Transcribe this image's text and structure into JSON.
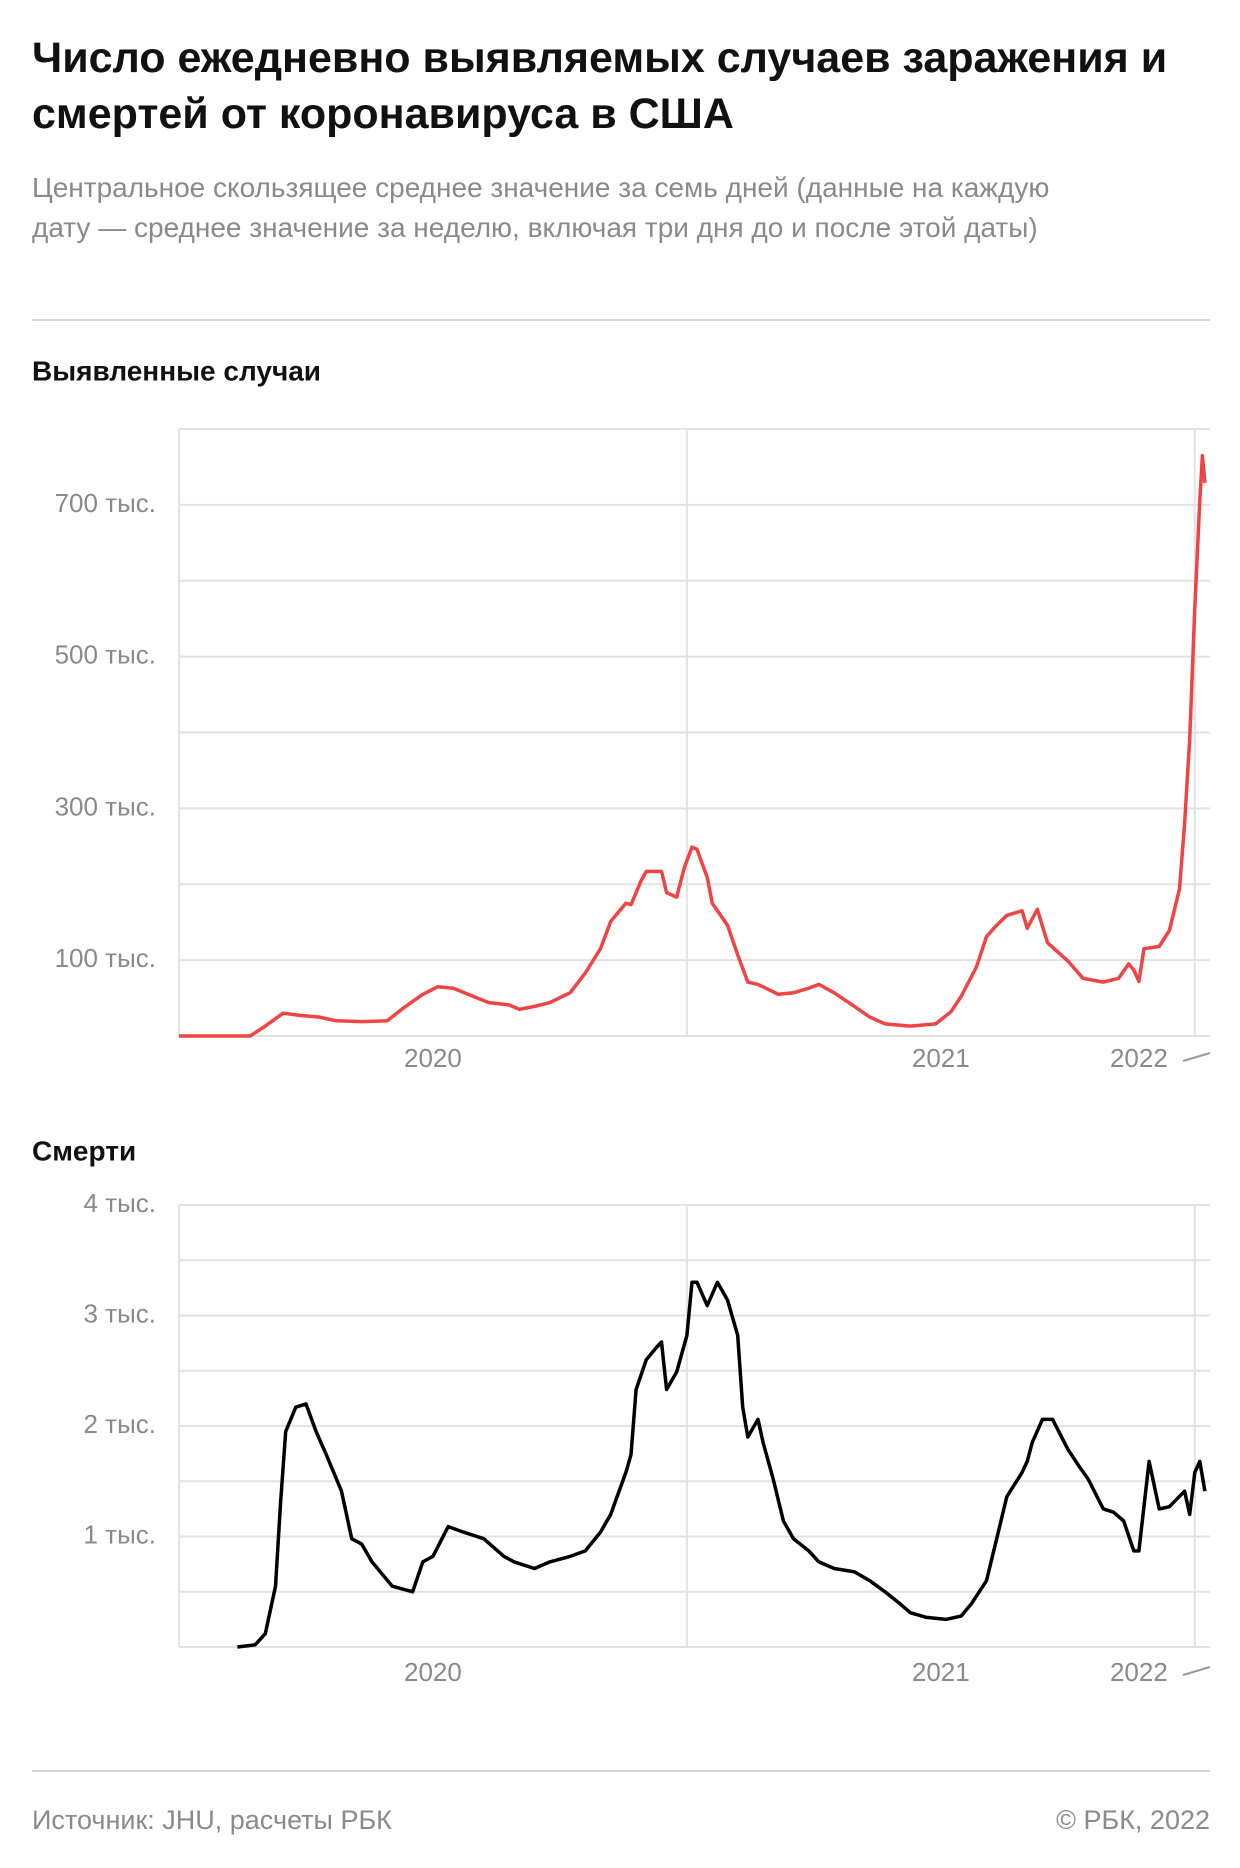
{
  "header": {
    "title": "Число ежедневно выявляемых случаев заражения и смертей от коронавируса в США",
    "subtitle": "Центральное скользящее среднее значение за семь дней (данные на каждую дату — среднее значение за неделю, включая три дня до и после этой даты)"
  },
  "chart_data": [
    {
      "type": "line",
      "title": "Выявленные случаи",
      "color": "#f04444",
      "x": [
        2020.0,
        2020.14,
        2020.17,
        2020.205,
        2020.24,
        2020.275,
        2020.31,
        2020.36,
        2020.41,
        2020.44,
        2020.48,
        2020.51,
        2020.54,
        2020.58,
        2020.61,
        2020.65,
        2020.67,
        2020.7,
        2020.73,
        2020.77,
        2020.8,
        2020.83,
        2020.85,
        2020.88,
        2020.89,
        2020.91,
        2020.92,
        2020.95,
        2020.96,
        2020.98,
        2020.995,
        2021.01,
        2021.02,
        2021.04,
        2021.05,
        2021.08,
        2021.1,
        2021.12,
        2021.14,
        2021.18,
        2021.21,
        2021.24,
        2021.26,
        2021.29,
        2021.33,
        2021.36,
        2021.39,
        2021.44,
        2021.49,
        2021.52,
        2021.54,
        2021.57,
        2021.59,
        2021.61,
        2021.63,
        2021.66,
        2021.67,
        2021.69,
        2021.71,
        2021.75,
        2021.78,
        2021.82,
        2021.85,
        2021.87,
        2021.88,
        2021.89,
        2021.9,
        2021.93,
        2021.95,
        2021.97,
        2021.98,
        2021.99,
        2022.0,
        2022.01,
        2022.015,
        2022.02
      ],
      "values": [
        0,
        0,
        13000,
        30000,
        27000,
        25000,
        20000,
        19000,
        20000,
        36000,
        55000,
        65000,
        63000,
        52000,
        44000,
        41000,
        35000,
        39000,
        44000,
        57000,
        83000,
        115000,
        151000,
        175000,
        173000,
        205000,
        217000,
        217000,
        189000,
        183000,
        222000,
        249000,
        246000,
        209000,
        175000,
        146000,
        107000,
        71000,
        68000,
        55000,
        57000,
        63000,
        68000,
        57000,
        39000,
        25000,
        16000,
        13000,
        16000,
        32000,
        52000,
        91000,
        131000,
        146000,
        159000,
        165000,
        142000,
        167000,
        123000,
        99000,
        76000,
        71000,
        76000,
        95000,
        87000,
        72000,
        115000,
        118000,
        139000,
        194000,
        280000,
        391000,
        564000,
        706000,
        765000,
        729000
      ],
      "xlim": [
        2020,
        2022.03
      ],
      "xticks": [
        {
          "value": 2020.5,
          "label": "2020"
        },
        {
          "value": 2021.5,
          "label": "2021"
        },
        {
          "value": 2021.89,
          "label": "2022"
        }
      ],
      "xgrid": [
        2021,
        2022
      ],
      "ylim": [
        0,
        800000
      ],
      "yticks": [
        {
          "value": 100000,
          "label": "100 тыс."
        },
        {
          "value": 300000,
          "label": "300 тыс."
        },
        {
          "value": 500000,
          "label": "500 тыс."
        },
        {
          "value": 700000,
          "label": "700 тыс."
        }
      ],
      "ygrid": [
        0,
        100000,
        200000,
        300000,
        400000,
        500000,
        600000,
        700000,
        800000
      ]
    },
    {
      "type": "line",
      "title": "Смерти",
      "color": "#000000",
      "x": [
        2020.115,
        2020.15,
        2020.17,
        2020.19,
        2020.2,
        2020.21,
        2020.23,
        2020.25,
        2020.27,
        2020.29,
        2020.32,
        2020.34,
        2020.36,
        2020.38,
        2020.42,
        2020.46,
        2020.48,
        2020.5,
        2020.53,
        2020.56,
        2020.6,
        2020.64,
        2020.66,
        2020.7,
        2020.73,
        2020.77,
        2020.8,
        2020.83,
        2020.85,
        2020.88,
        2020.89,
        2020.9,
        2020.92,
        2020.94,
        2020.95,
        2020.96,
        2020.98,
        2021.0,
        2021.01,
        2021.02,
        2021.04,
        2021.06,
        2021.08,
        2021.1,
        2021.11,
        2021.12,
        2021.14,
        2021.15,
        2021.17,
        2021.19,
        2021.21,
        2021.24,
        2021.26,
        2021.29,
        2021.33,
        2021.36,
        2021.39,
        2021.42,
        2021.44,
        2021.47,
        2021.51,
        2021.54,
        2021.56,
        2021.59,
        2021.61,
        2021.63,
        2021.66,
        2021.67,
        2021.68,
        2021.7,
        2021.72,
        2021.75,
        2021.77,
        2021.79,
        2021.82,
        2021.84,
        2021.86,
        2021.88,
        2021.89,
        2021.91,
        2021.93,
        2021.95,
        2021.98,
        2021.99,
        2022.0,
        2022.01,
        2022.02
      ],
      "values": [
        0,
        20,
        120,
        550,
        1310,
        1950,
        2170,
        2200,
        1950,
        1740,
        1410,
        980,
        930,
        770,
        550,
        500,
        770,
        820,
        1090,
        1040,
        980,
        820,
        770,
        710,
        770,
        820,
        870,
        1040,
        1200,
        1580,
        1740,
        2330,
        2600,
        2710,
        2760,
        2330,
        2490,
        2820,
        3300,
        3300,
        3090,
        3300,
        3140,
        2820,
        2170,
        1900,
        2060,
        1850,
        1520,
        1140,
        980,
        870,
        770,
        710,
        680,
        600,
        500,
        390,
        310,
        270,
        250,
        280,
        390,
        600,
        980,
        1360,
        1580,
        1680,
        1850,
        2060,
        2060,
        1790,
        1650,
        1520,
        1250,
        1220,
        1140,
        870,
        870,
        1680,
        1250,
        1270,
        1410,
        1200,
        1580,
        1680,
        1410
      ],
      "xlim": [
        2020,
        2022.03
      ],
      "xticks": [
        {
          "value": 2020.5,
          "label": "2020"
        },
        {
          "value": 2021.5,
          "label": "2021"
        },
        {
          "value": 2021.89,
          "label": "2022"
        }
      ],
      "xgrid": [
        2021,
        2022
      ],
      "ylim": [
        0,
        4000
      ],
      "yticks": [
        {
          "value": 1000,
          "label": "1 тыс."
        },
        {
          "value": 2000,
          "label": "2 тыс."
        },
        {
          "value": 3000,
          "label": "3 тыс."
        },
        {
          "value": 4000,
          "label": "4 тыс."
        }
      ],
      "ygrid": [
        0,
        500,
        1000,
        1500,
        2000,
        2500,
        3000,
        3500,
        4000
      ]
    }
  ],
  "footer": {
    "source": "Источник: JHU, расчеты РБК",
    "credit": "© РБК, 2022"
  }
}
